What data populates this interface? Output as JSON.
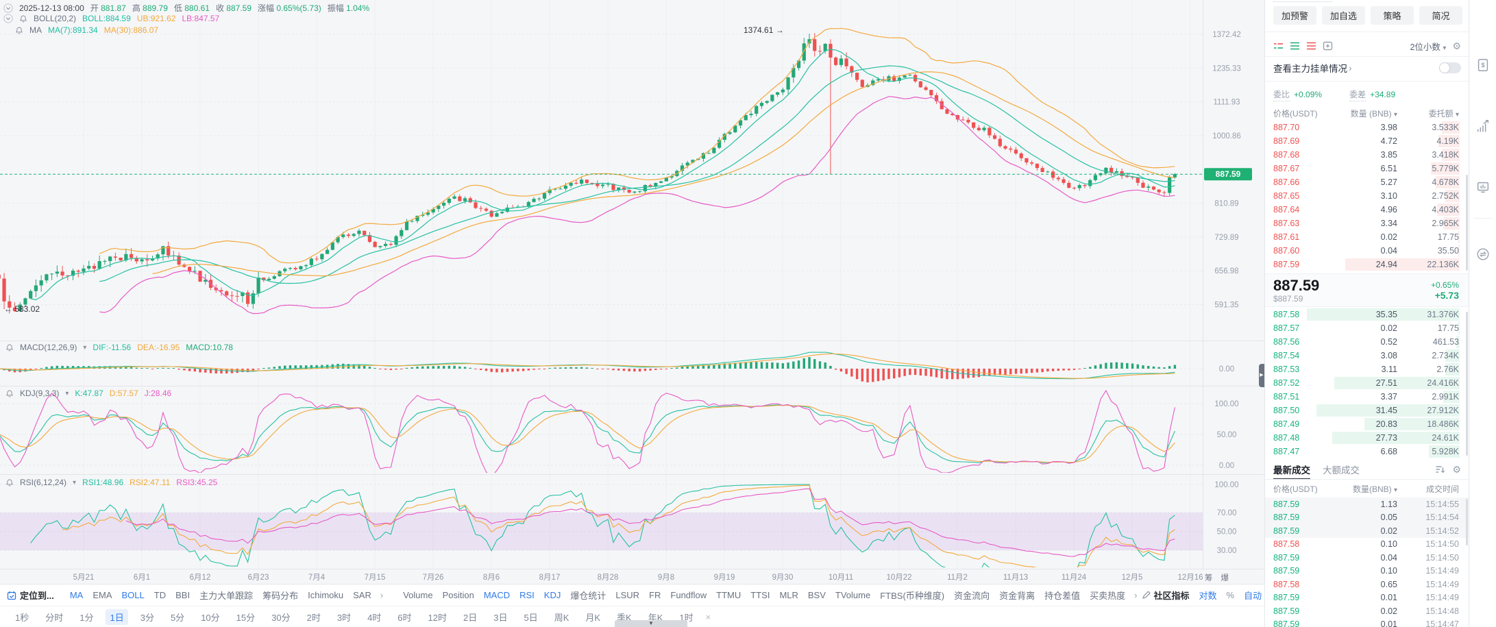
{
  "colors": {
    "up": "#23a776",
    "down": "#ee5151",
    "teal": "#25c1a1",
    "orange": "#f3a93c",
    "magenta": "#e75ac5",
    "blue": "#2f7ae5",
    "green_text": "#1fab76",
    "red_text": "#f25050",
    "tag": "#1fb074"
  },
  "legend": {
    "datetime": "2025-12-13 08:00",
    "o_label": "开",
    "o": "881.87",
    "h_label": "高",
    "h": "889.79",
    "l_label": "低",
    "l": "880.61",
    "c_label": "收",
    "c": "887.59",
    "chg_label": "涨幅",
    "chg": "0.65%(5.73)",
    "amp_label": "振幅",
    "amp": "1.04%",
    "boll_name": "BOLL(20,2)",
    "boll_mid": "BOLL:884.59",
    "boll_ub": "UB:921.62",
    "boll_lb": "LB:847.57",
    "ma_name": "MA",
    "ma7": "MA(7):891.34",
    "ma30": "MA(30):886.07",
    "macd_name": "MACD(12,26,9)",
    "dif": "DIF:-11.56",
    "dea": "DEA:-16.95",
    "macd": "MACD:10.78",
    "kdj_name": "KDJ(9,3,3)",
    "k": "K:47.87",
    "d": "D:57.57",
    "j": "J:28.46",
    "rsi_name": "RSI(6,12,24)",
    "rsi1": "RSI1:48.96",
    "rsi2": "RSI2:47.11",
    "rsi3": "RSI3:45.25"
  },
  "annotations": {
    "peak": "1374.61 →",
    "trough": "← 583.02"
  },
  "axis_extra": [
    "筹",
    "爆"
  ],
  "chart_data": {
    "type": "candlestick",
    "days": 223,
    "first_label_day": 16,
    "label_step_days": 11,
    "last_close": 887.59,
    "price_line": 887.59,
    "peak": {
      "day": 153,
      "high": 1374.61
    },
    "trough": {
      "day": 1,
      "low": 583.02
    },
    "crash_wick": {
      "day": 157,
      "low": 888
    },
    "x_labels": [
      "5月21",
      "6月1",
      "6月12",
      "6月23",
      "7月4",
      "7月15",
      "7月26",
      "8月6",
      "8月17",
      "8月28",
      "9月8",
      "9月19",
      "9月30",
      "10月11",
      "10月22",
      "11月2",
      "11月13",
      "11月24",
      "12月5",
      "12月16"
    ],
    "price_ticks": [
      1372.42,
      1235.33,
      1111.93,
      1000.86,
      810.89,
      729.89,
      656.98,
      591.35
    ],
    "price_tag": "887.59",
    "macd_ticks": [
      0
    ],
    "kdj_ticks": [
      100,
      50,
      0
    ],
    "rsi_ticks": [
      100,
      70,
      50,
      30
    ],
    "keyframes": [
      [
        0,
        640
      ],
      [
        1,
        600
      ],
      [
        3,
        588
      ],
      [
        6,
        625
      ],
      [
        10,
        648
      ],
      [
        16,
        660
      ],
      [
        22,
        688
      ],
      [
        27,
        685
      ],
      [
        31,
        700
      ],
      [
        35,
        668
      ],
      [
        38,
        645
      ],
      [
        42,
        618
      ],
      [
        45,
        612
      ],
      [
        47,
        600
      ],
      [
        49,
        638
      ],
      [
        53,
        652
      ],
      [
        57,
        668
      ],
      [
        60,
        685
      ],
      [
        64,
        726
      ],
      [
        68,
        742
      ],
      [
        71,
        705
      ],
      [
        74,
        712
      ],
      [
        77,
        762
      ],
      [
        80,
        786
      ],
      [
        82,
        795
      ],
      [
        85,
        828
      ],
      [
        88,
        818
      ],
      [
        91,
        792
      ],
      [
        93,
        782
      ],
      [
        96,
        800
      ],
      [
        99,
        806
      ],
      [
        102,
        825
      ],
      [
        104,
        840
      ],
      [
        107,
        862
      ],
      [
        110,
        868
      ],
      [
        113,
        852
      ],
      [
        115,
        856
      ],
      [
        118,
        842
      ],
      [
        121,
        848
      ],
      [
        124,
        866
      ],
      [
        126,
        880
      ],
      [
        129,
        905
      ],
      [
        132,
        930
      ],
      [
        135,
        968
      ],
      [
        137,
        1002
      ],
      [
        140,
        1048
      ],
      [
        143,
        1092
      ],
      [
        146,
        1128
      ],
      [
        148,
        1162
      ],
      [
        150,
        1225
      ],
      [
        152,
        1320
      ],
      [
        153,
        1358
      ],
      [
        154,
        1300
      ],
      [
        156,
        1322
      ],
      [
        157,
        1258
      ],
      [
        159,
        1262
      ],
      [
        161,
        1205
      ],
      [
        163,
        1172
      ],
      [
        165,
        1185
      ],
      [
        168,
        1200
      ],
      [
        170,
        1192
      ],
      [
        172,
        1208
      ],
      [
        174,
        1170
      ],
      [
        176,
        1128
      ],
      [
        178,
        1085
      ],
      [
        181,
        1058
      ],
      [
        184,
        1032
      ],
      [
        186,
        1018
      ],
      [
        188,
        985
      ],
      [
        190,
        962
      ],
      [
        192,
        948
      ],
      [
        194,
        925
      ],
      [
        197,
        898
      ],
      [
        200,
        868
      ],
      [
        203,
        845
      ],
      [
        205,
        862
      ],
      [
        207,
        884
      ],
      [
        209,
        902
      ],
      [
        211,
        895
      ],
      [
        214,
        878
      ],
      [
        216,
        856
      ],
      [
        218,
        848
      ],
      [
        220,
        838
      ],
      [
        221,
        882
      ],
      [
        222,
        887.59
      ]
    ]
  },
  "toolbar": {
    "locate": "定位到...",
    "main": {
      "items": [
        "MA",
        "EMA",
        "BOLL",
        "TD",
        "BBI",
        "主力大单跟踪",
        "筹码分布",
        "Ichimoku",
        "SAR"
      ],
      "active": [
        "MA",
        "BOLL"
      ],
      "more": "›"
    },
    "sub": {
      "items": [
        "Volume",
        "Position",
        "MACD",
        "RSI",
        "KDJ",
        "爆仓统计",
        "LSUR",
        "FR",
        "Fundflow",
        "TTMU",
        "TTSI",
        "MLR",
        "BSV",
        "TVolume",
        "FTBS(币种维度)",
        "资金流向",
        "资金背离",
        "持仓差值",
        "买卖热度"
      ],
      "active": [
        "MACD",
        "RSI",
        "KDJ"
      ],
      "more": "›"
    },
    "community": "社区指标",
    "log_scale": "对数",
    "percent": "%",
    "auto": "自动"
  },
  "timeframes": {
    "items": [
      "1秒",
      "分时",
      "1分",
      "1日",
      "3分",
      "5分",
      "10分",
      "15分",
      "30分",
      "2时",
      "3时",
      "4时",
      "6时",
      "12时",
      "2日",
      "3日",
      "5日",
      "周K",
      "月K",
      "季K",
      "年K",
      "1时"
    ],
    "active": "1日",
    "close": "×"
  },
  "orderbook": {
    "actions": [
      "加预警",
      "加自选",
      "策略",
      "简况"
    ],
    "decimals": "2位小数",
    "view_main": "查看主力挂单情况",
    "view_main_arrow": "›",
    "ratio_label": "委比",
    "ratio_value": "+0.09%",
    "diff_label": "委差",
    "diff_value": "+34.89",
    "headers": {
      "price": "价格(USDT)",
      "qty": "数量 (BNB)",
      "amount": "委托额"
    },
    "asks": [
      [
        "887.70",
        "3.98",
        "3.533K",
        0.11
      ],
      [
        "887.69",
        "4.72",
        "4.19K",
        0.13
      ],
      [
        "887.68",
        "3.85",
        "3.418K",
        0.11
      ],
      [
        "887.67",
        "6.51",
        "5.779K",
        0.18
      ],
      [
        "887.66",
        "5.27",
        "4.678K",
        0.15
      ],
      [
        "887.65",
        "3.10",
        "2.752K",
        0.09
      ],
      [
        "887.64",
        "4.96",
        "4.403K",
        0.14
      ],
      [
        "887.63",
        "3.34",
        "2.965K",
        0.1
      ],
      [
        "887.61",
        "0.02",
        "17.75",
        0.01
      ],
      [
        "887.60",
        "0.04",
        "35.50",
        0.01
      ],
      [
        "887.59",
        "24.94",
        "22.136K",
        0.71
      ]
    ],
    "current": {
      "price": "887.59",
      "usd": "$887.59",
      "pct": "+0.65%",
      "abs": "+5.73"
    },
    "bids": [
      [
        "887.58",
        "35.35",
        "31.376K",
        0.95
      ],
      [
        "887.57",
        "0.02",
        "17.75",
        0.01
      ],
      [
        "887.56",
        "0.52",
        "461.53",
        0.02
      ],
      [
        "887.54",
        "3.08",
        "2.734K",
        0.09
      ],
      [
        "887.53",
        "3.11",
        "2.76K",
        0.09
      ],
      [
        "887.52",
        "27.51",
        "24.416K",
        0.78
      ],
      [
        "887.51",
        "3.37",
        "2.991K",
        0.1
      ],
      [
        "887.50",
        "31.45",
        "27.912K",
        0.89
      ],
      [
        "887.49",
        "20.83",
        "18.486K",
        0.59
      ],
      [
        "887.48",
        "27.73",
        "24.61K",
        0.79
      ],
      [
        "887.47",
        "6.68",
        "5.928K",
        0.19
      ]
    ]
  },
  "trades": {
    "tabs": [
      "最新成交",
      "大额成交"
    ],
    "headers": {
      "price": "价格(USDT)",
      "qty": "数量(BNB)",
      "time": "成交时间"
    },
    "rows": [
      [
        "887.59",
        "1.13",
        "15:14:55",
        "u",
        1
      ],
      [
        "887.59",
        "0.05",
        "15:14:54",
        "u",
        1
      ],
      [
        "887.59",
        "0.02",
        "15:14:52",
        "u",
        1
      ],
      [
        "887.58",
        "0.10",
        "15:14:50",
        "d",
        0
      ],
      [
        "887.59",
        "0.04",
        "15:14:50",
        "u",
        0
      ],
      [
        "887.59",
        "0.10",
        "15:14:49",
        "u",
        0
      ],
      [
        "887.58",
        "0.65",
        "15:14:49",
        "d",
        0
      ],
      [
        "887.59",
        "0.01",
        "15:14:49",
        "u",
        0
      ],
      [
        "887.59",
        "0.02",
        "15:14:48",
        "u",
        0
      ],
      [
        "887.59",
        "0.01",
        "15:14:47",
        "u",
        0
      ]
    ]
  }
}
